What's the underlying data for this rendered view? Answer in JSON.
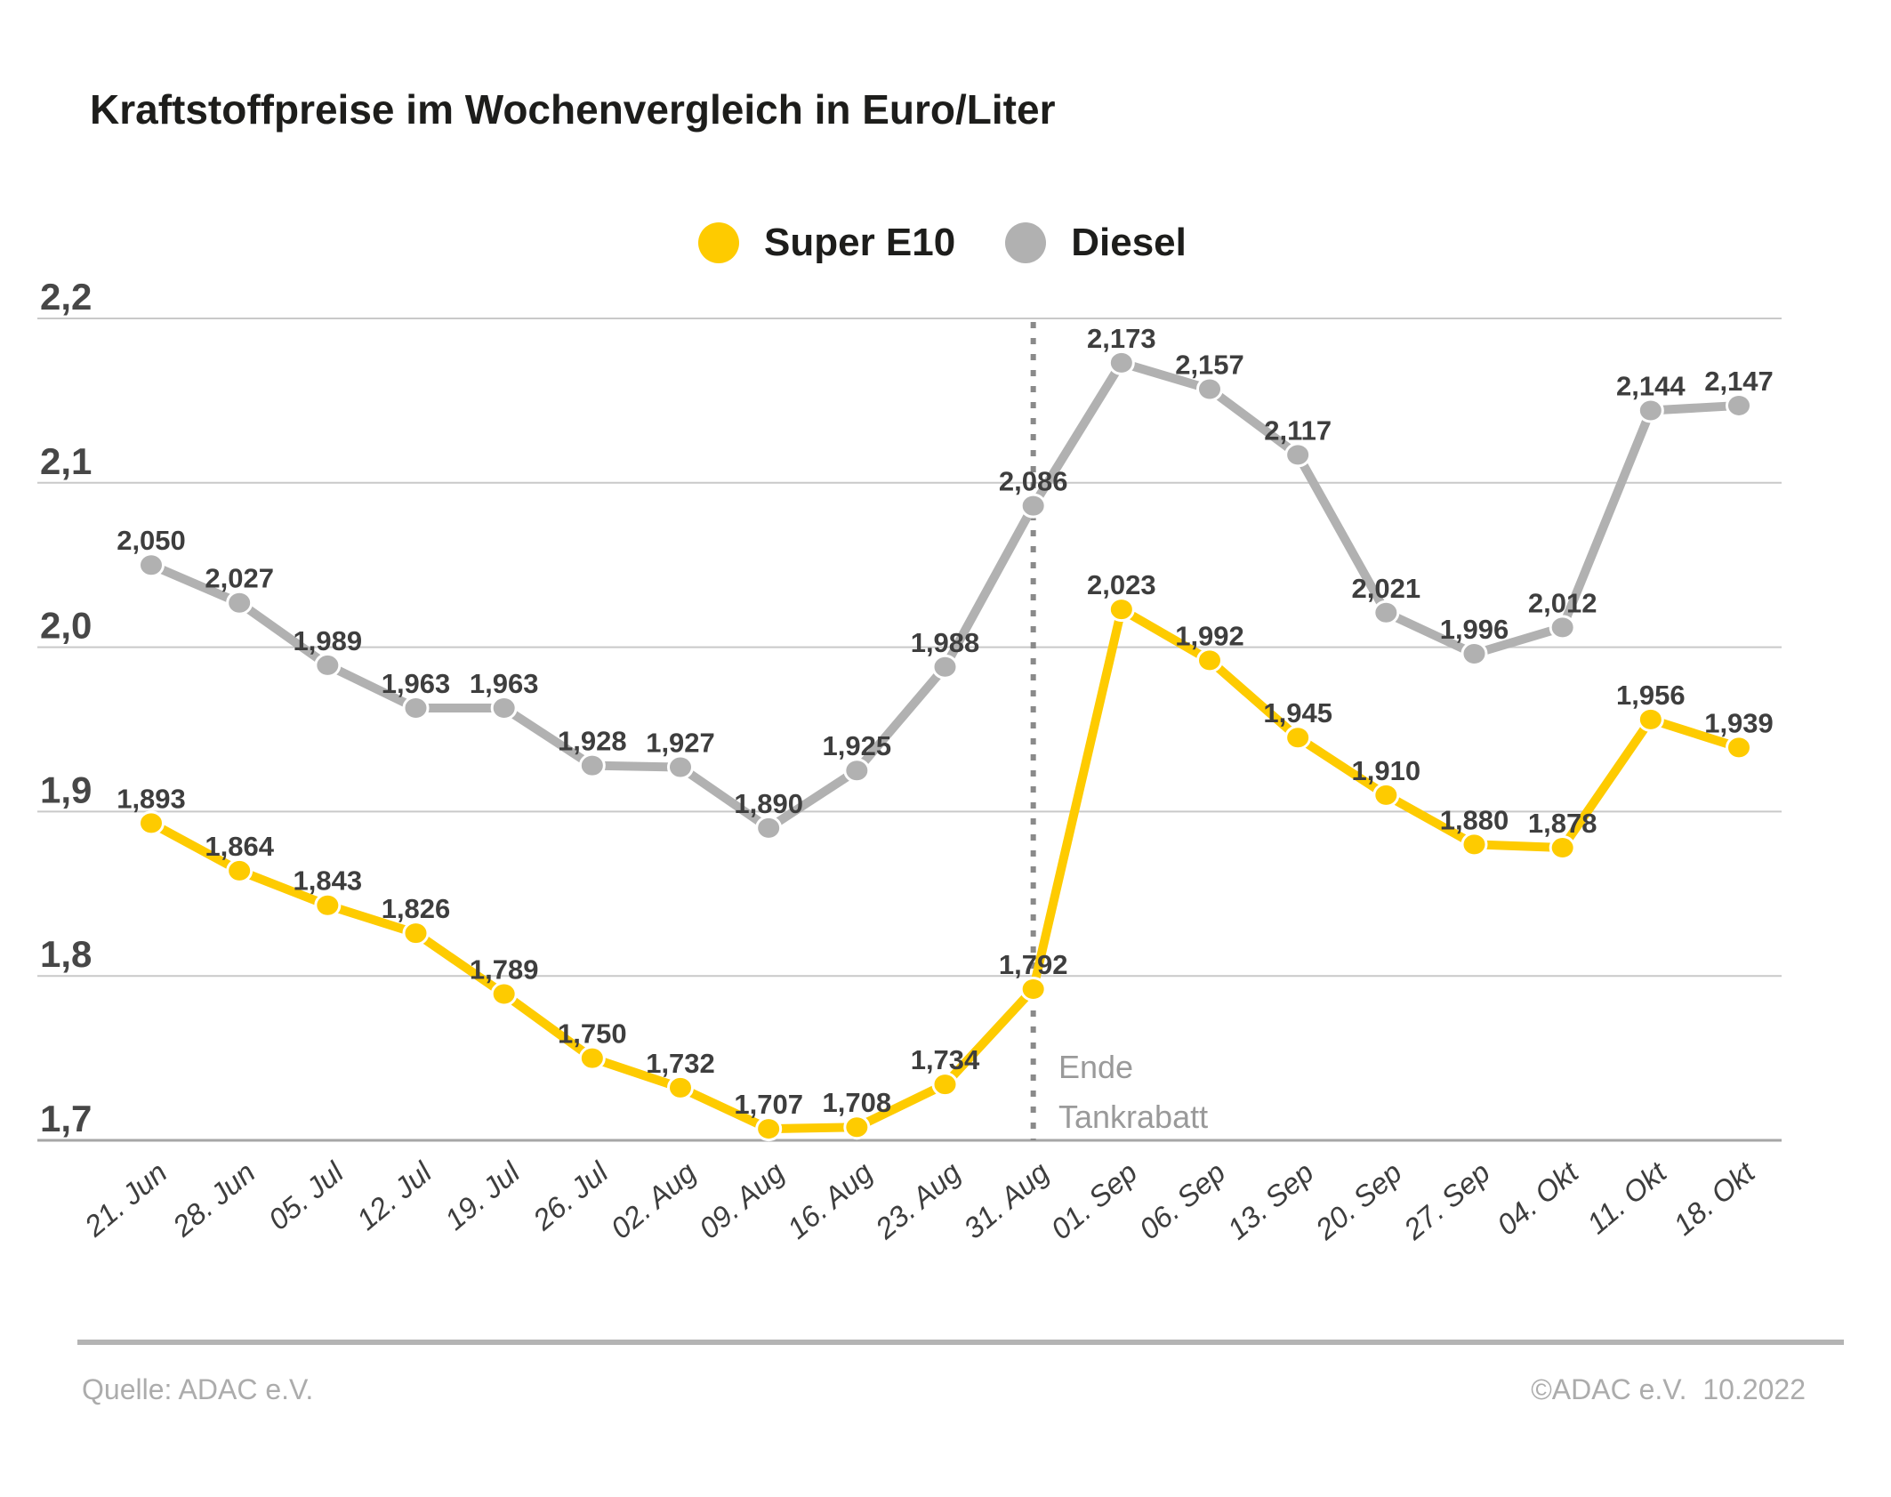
{
  "title": "Kraftstoffpreise im Wochenvergleich in Euro/Liter",
  "legend": {
    "items": [
      {
        "label": "Super E10",
        "color": "#FECB00"
      },
      {
        "label": "Diesel",
        "color": "#B1B1B1"
      }
    ]
  },
  "annotation": {
    "line1": "Ende",
    "line2": "Tankrabatt"
  },
  "footer": {
    "source": "Quelle: ADAC e.V.",
    "copyright": "©ADAC e.V.  10.2022"
  },
  "chart_data": {
    "type": "line",
    "title": "Kraftstoffpreise im Wochenvergleich in Euro/Liter",
    "categories": [
      "21. Jun",
      "28. Jun",
      "05. Jul",
      "12. Jul",
      "19. Jul",
      "26. Jul",
      "02. Aug",
      "09. Aug",
      "16. Aug",
      "23. Aug",
      "31. Aug",
      "01. Sep",
      "06. Sep",
      "13. Sep",
      "20. Sep",
      "27. Sep",
      "04. Okt",
      "11. Okt",
      "18. Okt"
    ],
    "series": [
      {
        "name": "Super E10",
        "color": "#FECB00",
        "values": [
          1.893,
          1.864,
          1.843,
          1.826,
          1.789,
          1.75,
          1.732,
          1.707,
          1.708,
          1.734,
          1.792,
          2.023,
          1.992,
          1.945,
          1.91,
          1.88,
          1.878,
          1.956,
          1.939
        ],
        "labels": [
          "1,893",
          "1,864",
          "1,843",
          "1,826",
          "1,789",
          "1,750",
          "1,732",
          "1,707",
          "1,708",
          "1,734",
          "1,792",
          "2,023",
          "1,992",
          "1,945",
          "1,910",
          "1,880",
          "1,878",
          "1,956",
          "1,939"
        ]
      },
      {
        "name": "Diesel",
        "color": "#B1B1B1",
        "values": [
          2.05,
          2.027,
          1.989,
          1.963,
          1.963,
          1.928,
          1.927,
          1.89,
          1.925,
          1.988,
          2.086,
          2.173,
          2.157,
          2.117,
          2.021,
          1.996,
          2.012,
          2.144,
          2.147
        ],
        "labels": [
          "2,050",
          "2,027",
          "1,989",
          "1,963",
          "1,963",
          "1,928",
          "1,927",
          "1,890",
          "1,925",
          "1,988",
          "2,086",
          "2,173",
          "2,157",
          "2,117",
          "2,021",
          "1,996",
          "2,012",
          "2,144",
          "2,147"
        ]
      }
    ],
    "ylabel_ticks": [
      "2,2",
      "2,1",
      "2,0",
      "1,9",
      "1,8",
      "1,7"
    ],
    "ylim": [
      1.7,
      2.2
    ],
    "unit": "Euro/Liter",
    "decimal": "comma",
    "grid": "horizontal",
    "legend_position": "top-center",
    "annotation_x_category": "31. Aug",
    "annotation_text": "Ende Tankrabatt"
  }
}
